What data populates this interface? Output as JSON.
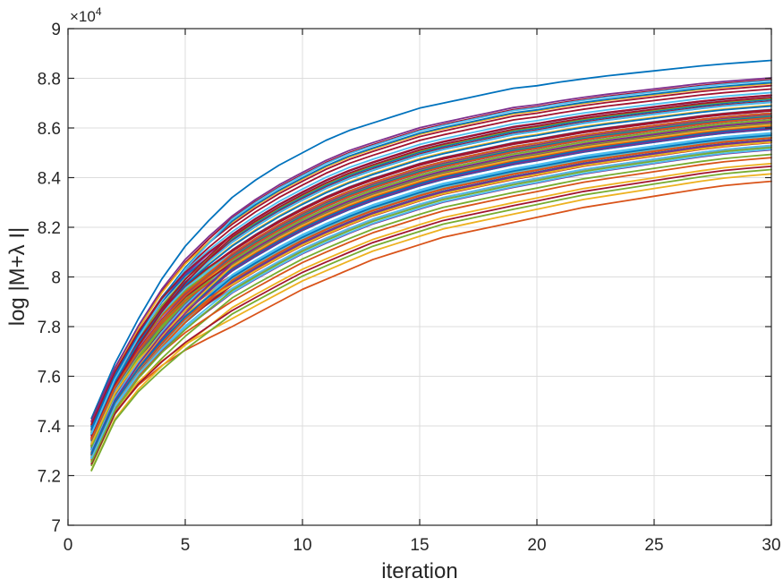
{
  "chart_data": {
    "type": "line",
    "title": "",
    "xlabel": "iteration",
    "ylabel": "log |M+λ I|",
    "xlim": [
      0,
      30
    ],
    "ylim": [
      70000,
      90000
    ],
    "xticks": [
      0,
      5,
      10,
      15,
      20,
      25,
      30
    ],
    "xtick_labels": [
      "0",
      "5",
      "10",
      "15",
      "20",
      "25",
      "30"
    ],
    "yticks": [
      70000,
      72000,
      74000,
      76000,
      78000,
      80000,
      82000,
      84000,
      86000,
      88000,
      90000
    ],
    "ytick_labels": [
      "7",
      "7.2",
      "7.4",
      "7.6",
      "7.8",
      "8",
      "8.2",
      "8.4",
      "8.6",
      "8.8",
      "9"
    ],
    "y_exponent_base": "×10",
    "y_exponent_power": "4",
    "grid": true,
    "legend": "none",
    "x": [
      1,
      2,
      3,
      4,
      5,
      6,
      7,
      8,
      9,
      10,
      11,
      12,
      13,
      14,
      15,
      16,
      17,
      18,
      19,
      20,
      21,
      22,
      23,
      24,
      25,
      26,
      27,
      28,
      29,
      30
    ],
    "series_count": 100,
    "series_palette": [
      "#0072BD",
      "#D95319",
      "#EDB120",
      "#7E2F8E",
      "#77AC30",
      "#4DBEEE",
      "#A2142F"
    ],
    "series_envelope": {
      "upper": {
        "values": [
          74400,
          76600,
          78400,
          80000,
          81300,
          82300,
          83200,
          83900,
          84500,
          85000,
          85500,
          85900,
          86200,
          86500,
          86800,
          87000,
          87200,
          87400,
          87600,
          87700,
          87850,
          87980,
          88100,
          88200,
          88300,
          88400,
          88500,
          88580,
          88650,
          88720
        ]
      },
      "lower": {
        "values": [
          72200,
          74200,
          75300,
          76100,
          76800,
          77400,
          78000,
          78500,
          79000,
          79500,
          79900,
          80300,
          80700,
          81000,
          81300,
          81600,
          81800,
          82000,
          82200,
          82400,
          82600,
          82800,
          82950,
          83100,
          83250,
          83400,
          83550,
          83680,
          83770,
          83850
        ]
      }
    },
    "series": []
  }
}
